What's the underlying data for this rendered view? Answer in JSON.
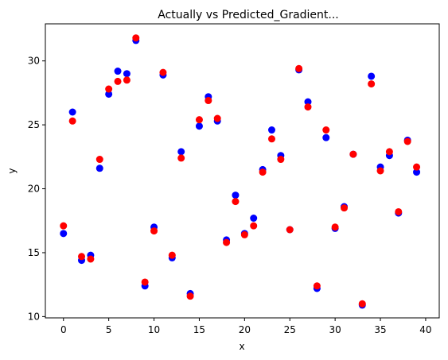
{
  "chart_data": {
    "type": "scatter",
    "title": "Actually vs Predicted_Gradient...",
    "xlabel": "x",
    "ylabel": "y",
    "xlim": [
      -2,
      41.5
    ],
    "ylim": [
      9.9,
      32.9
    ],
    "xticks": [
      0,
      5,
      10,
      15,
      20,
      25,
      30,
      35,
      40
    ],
    "yticks": [
      10,
      15,
      20,
      25,
      30
    ],
    "grid": false,
    "legend": false,
    "series": [
      {
        "color": "#0000ff",
        "x": [
          0,
          1,
          2,
          3,
          4,
          5,
          6,
          7,
          8,
          9,
          10,
          11,
          12,
          13,
          14,
          15,
          16,
          17,
          18,
          19,
          20,
          21,
          22,
          23,
          24,
          25,
          26,
          27,
          28,
          29,
          30,
          31,
          32,
          33,
          34,
          35,
          36,
          37,
          38,
          39
        ],
        "y": [
          16.5,
          26.0,
          14.4,
          14.8,
          21.6,
          27.4,
          29.2,
          29.0,
          31.6,
          12.4,
          17.0,
          28.9,
          14.6,
          22.9,
          11.8,
          24.9,
          27.2,
          25.3,
          16.0,
          19.5,
          16.5,
          17.7,
          21.5,
          24.6,
          22.6,
          16.8,
          29.3,
          26.8,
          12.2,
          24.0,
          16.9,
          18.6,
          22.7,
          10.9,
          28.8,
          21.7,
          22.6,
          18.1,
          23.8,
          21.3
        ]
      },
      {
        "color": "#ff0000",
        "x": [
          0,
          1,
          2,
          3,
          4,
          5,
          6,
          7,
          8,
          9,
          10,
          11,
          12,
          13,
          14,
          15,
          16,
          17,
          18,
          19,
          20,
          21,
          22,
          23,
          24,
          25,
          26,
          27,
          28,
          29,
          30,
          31,
          32,
          33,
          34,
          35,
          36,
          37,
          38,
          39
        ],
        "y": [
          17.1,
          25.3,
          14.7,
          14.5,
          22.3,
          27.8,
          28.4,
          28.5,
          31.8,
          12.7,
          16.7,
          29.1,
          14.8,
          22.4,
          11.6,
          25.4,
          26.9,
          25.5,
          15.8,
          19.0,
          16.4,
          17.1,
          21.3,
          23.9,
          22.3,
          16.8,
          29.4,
          26.4,
          12.4,
          24.6,
          17.0,
          18.5,
          22.7,
          11.0,
          28.2,
          21.4,
          22.9,
          18.2,
          23.7,
          21.7
        ]
      }
    ]
  }
}
